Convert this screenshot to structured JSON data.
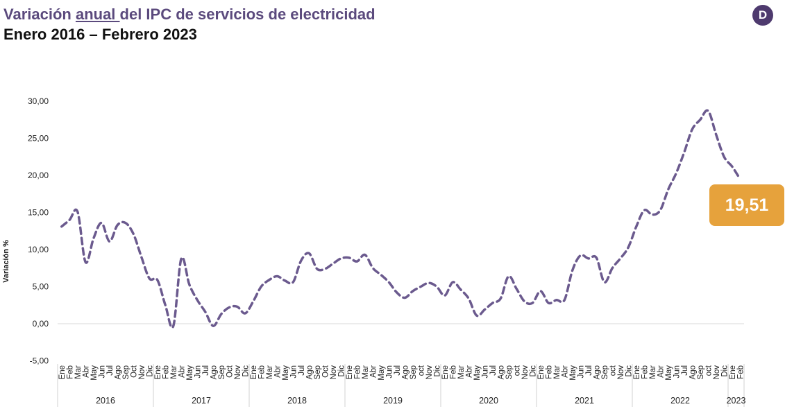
{
  "header": {
    "title_before": "Variación ",
    "title_underlined": "anual ",
    "title_after": "del IPC de servicios de electricidad",
    "subtitle": "Enero 2016 – Febrero 2023",
    "logo_letter": "D"
  },
  "colors": {
    "line": "#6b5a8e",
    "title": "#5b4a7d",
    "callout": "#e6a23c",
    "logo": "#4e3a6e"
  },
  "chart_data": {
    "type": "line",
    "title": "Variación anual del IPC de servicios de electricidad",
    "ylabel": "Variación %",
    "ylim": [
      -5,
      30
    ],
    "yticks": [
      "-5,00",
      "0,00",
      "5,00",
      "10,00",
      "15,00",
      "20,00",
      "25,00",
      "30,00"
    ],
    "ytick_values": [
      -5,
      0,
      5,
      10,
      15,
      20,
      25,
      30
    ],
    "years": [
      {
        "label": "2016",
        "months": [
          "Ene",
          "Feb",
          "Mar",
          "Abr",
          "May",
          "Jun",
          "Jul",
          "Ago",
          "Sep",
          "Oct",
          "Nov",
          "Dic"
        ]
      },
      {
        "label": "2017",
        "months": [
          "Ene",
          "Feb",
          "Mar",
          "Abr",
          "May",
          "Jun",
          "Jul",
          "Ago",
          "Sep",
          "Oct",
          "Nov",
          "Dic"
        ]
      },
      {
        "label": "2018",
        "months": [
          "Ene",
          "Feb",
          "Mar",
          "Abr",
          "May",
          "Jun",
          "Jul",
          "Ago",
          "Sep",
          "Oct",
          "Nov",
          "Dic"
        ]
      },
      {
        "label": "2019",
        "months": [
          "Ene",
          "Feb",
          "Mar",
          "Abr",
          "May",
          "Jun",
          "Jul",
          "Ago",
          "Sep",
          "oct",
          "Nov",
          "Dic"
        ]
      },
      {
        "label": "2020",
        "months": [
          "Ene",
          "Feb",
          "Mar",
          "Abr",
          "May",
          "Jun",
          "Jul",
          "Ago",
          "Sep",
          "oct",
          "Nov",
          "Dic"
        ]
      },
      {
        "label": "2021",
        "months": [
          "Ene",
          "Feb",
          "Mar",
          "Abr",
          "May",
          "Jun",
          "Jul",
          "Ago",
          "Sep",
          "oct",
          "Nov",
          "Dic"
        ]
      },
      {
        "label": "2022",
        "months": [
          "Ene",
          "Feb",
          "Mar",
          "Abr",
          "May",
          "Jun",
          "Jul",
          "Ago",
          "Sep",
          "oct",
          "Nov",
          "Dic"
        ]
      },
      {
        "label": "2023",
        "months": [
          "Ene",
          "Feb"
        ]
      }
    ],
    "series": [
      {
        "values": [
          13.1,
          14.0,
          15.1,
          8.3,
          11.5,
          13.6,
          11.1,
          13.3,
          13.6,
          12.1,
          9.0,
          6.1,
          5.9,
          2.5,
          -0.3,
          8.8,
          5.3,
          3.2,
          1.6,
          -0.3,
          1.3,
          2.2,
          2.3,
          1.4,
          3.0,
          5.0,
          5.9,
          6.4,
          5.8,
          5.6,
          8.5,
          9.5,
          7.4,
          7.4,
          8.1,
          8.8,
          8.9,
          8.4,
          9.3,
          7.5,
          6.6,
          5.6,
          4.2,
          3.5,
          4.4,
          5.0,
          5.5,
          5.0,
          3.8,
          5.6,
          4.6,
          3.4,
          1.1,
          1.9,
          2.8,
          3.4,
          6.4,
          4.7,
          3.0,
          2.8,
          4.4,
          2.8,
          3.2,
          3.2,
          7.2,
          9.2,
          8.8,
          8.9,
          5.6,
          7.5,
          8.8,
          10.3,
          13.1,
          15.3,
          14.7,
          15.3,
          18.1,
          20.3,
          23.1,
          26.2,
          27.5,
          28.7,
          25.5,
          22.5,
          21.2,
          19.51
        ]
      }
    ],
    "last_value_label": "19,51",
    "grid": false,
    "legend": "none"
  }
}
